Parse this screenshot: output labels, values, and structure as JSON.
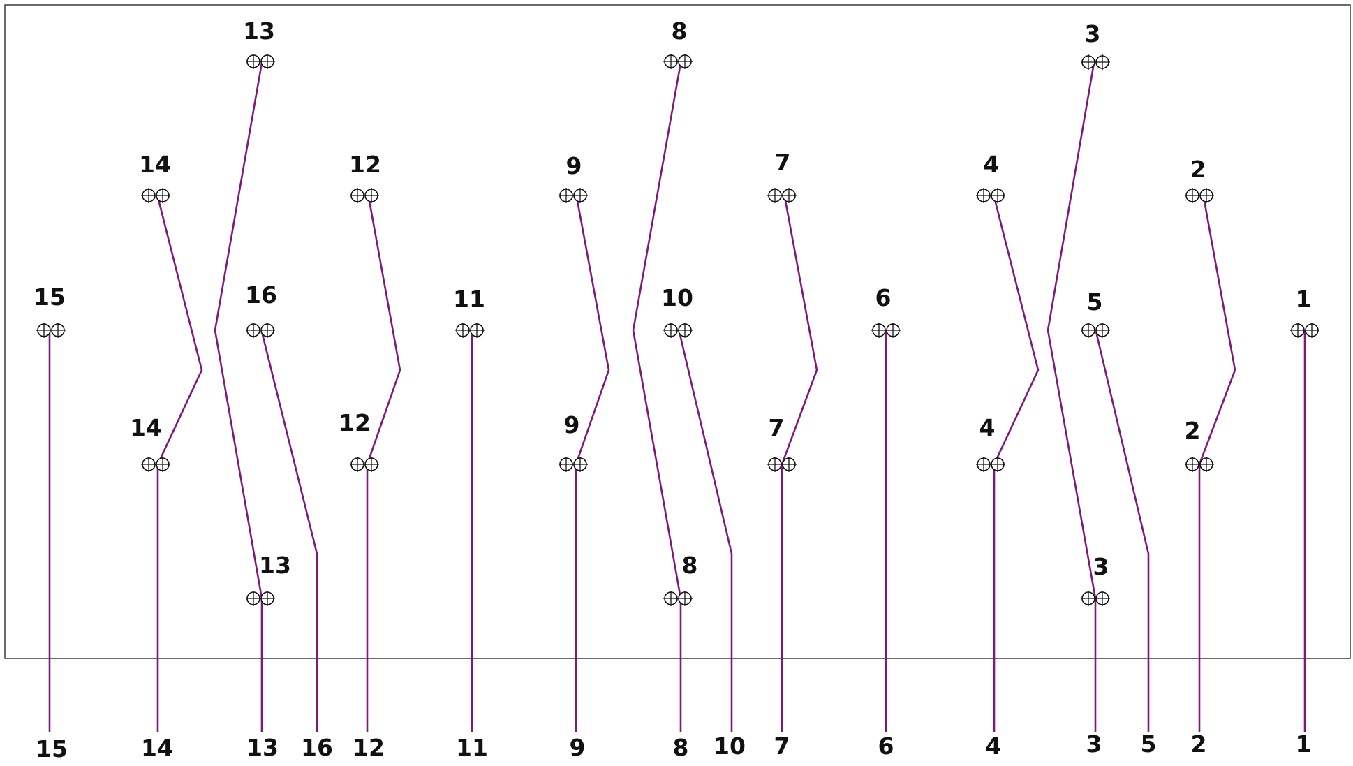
{
  "frame": {
    "stroke": "#3a3a3a"
  },
  "wire_color": "#80177e",
  "terminals": [
    {
      "id": "t13-top",
      "label": "13"
    },
    {
      "id": "t8-top",
      "label": "8"
    },
    {
      "id": "t3-top",
      "label": "3"
    },
    {
      "id": "t14-top",
      "label": "14"
    },
    {
      "id": "t12-top",
      "label": "12"
    },
    {
      "id": "t9-top",
      "label": "9"
    },
    {
      "id": "t7-top",
      "label": "7"
    },
    {
      "id": "t4-top",
      "label": "4"
    },
    {
      "id": "t2-top",
      "label": "2"
    },
    {
      "id": "t15",
      "label": "15"
    },
    {
      "id": "t16",
      "label": "16"
    },
    {
      "id": "t11",
      "label": "11"
    },
    {
      "id": "t10",
      "label": "10"
    },
    {
      "id": "t6",
      "label": "6"
    },
    {
      "id": "t5",
      "label": "5"
    },
    {
      "id": "t1",
      "label": "1"
    },
    {
      "id": "t14-low",
      "label": "14"
    },
    {
      "id": "t12-low",
      "label": "12"
    },
    {
      "id": "t9-low",
      "label": "9"
    },
    {
      "id": "t7-low",
      "label": "7"
    },
    {
      "id": "t4-low",
      "label": "4"
    },
    {
      "id": "t2-low",
      "label": "2"
    },
    {
      "id": "t13-low",
      "label": "13"
    },
    {
      "id": "t8-low",
      "label": "8"
    },
    {
      "id": "t3-low",
      "label": "3"
    }
  ],
  "outputs": [
    {
      "id": "out-15",
      "label": "15"
    },
    {
      "id": "out-14",
      "label": "14"
    },
    {
      "id": "out-13",
      "label": "13"
    },
    {
      "id": "out-16",
      "label": "16"
    },
    {
      "id": "out-12",
      "label": "12"
    },
    {
      "id": "out-11",
      "label": "11"
    },
    {
      "id": "out-9",
      "label": "9"
    },
    {
      "id": "out-8",
      "label": "8"
    },
    {
      "id": "out-10",
      "label": "10"
    },
    {
      "id": "out-7",
      "label": "7"
    },
    {
      "id": "out-6",
      "label": "6"
    },
    {
      "id": "out-4",
      "label": "4"
    },
    {
      "id": "out-3",
      "label": "3"
    },
    {
      "id": "out-5",
      "label": "5"
    },
    {
      "id": "out-2",
      "label": "2"
    },
    {
      "id": "out-1",
      "label": "1"
    }
  ],
  "wires": [
    {
      "id": "wire-15"
    },
    {
      "id": "wire-14"
    },
    {
      "id": "wire-13"
    },
    {
      "id": "wire-16"
    },
    {
      "id": "wire-12"
    },
    {
      "id": "wire-11"
    },
    {
      "id": "wire-9"
    },
    {
      "id": "wire-8"
    },
    {
      "id": "wire-10"
    },
    {
      "id": "wire-7"
    },
    {
      "id": "wire-6"
    },
    {
      "id": "wire-4"
    },
    {
      "id": "wire-3"
    },
    {
      "id": "wire-5"
    },
    {
      "id": "wire-2"
    },
    {
      "id": "wire-1"
    }
  ]
}
